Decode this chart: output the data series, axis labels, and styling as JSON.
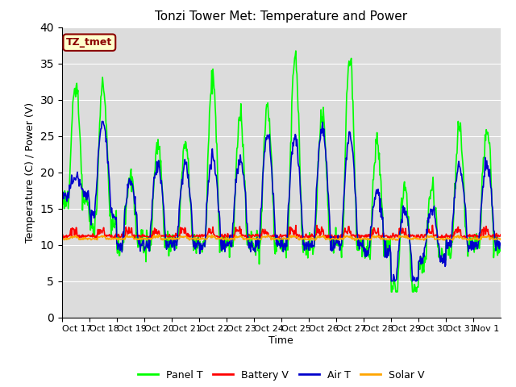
{
  "title": "Tonzi Tower Met: Temperature and Power",
  "xlabel": "Time",
  "ylabel": "Temperature (C) / Power (V)",
  "ylim": [
    0,
    40
  ],
  "yticks": [
    0,
    5,
    10,
    15,
    20,
    25,
    30,
    35,
    40
  ],
  "xtick_labels": [
    "Oct 17",
    "Oct 18",
    "Oct 19",
    "Oct 20",
    "Oct 21",
    "Oct 22",
    "Oct 23",
    "Oct 24",
    "Oct 25",
    "Oct 26",
    "Oct 27",
    "Oct 28",
    "Oct 29",
    "Oct 30",
    "Oct 31",
    "Nov 1"
  ],
  "annotation_text": "TZ_tmet",
  "annotation_bg": "#ffffcc",
  "annotation_fg": "#8b0000",
  "bg_color": "#dcdcdc",
  "fig_color": "#ffffff",
  "panel_t_color": "#00ff00",
  "battery_v_color": "#ff0000",
  "air_t_color": "#0000cc",
  "solar_v_color": "#ffa500",
  "legend_labels": [
    "Panel T",
    "Battery V",
    "Air T",
    "Solar V"
  ],
  "linewidth": 1.2,
  "n_days": 16,
  "pts_per_day": 48,
  "panel_day_peaks": [
    32,
    32,
    20,
    24,
    24,
    33,
    28,
    29,
    36,
    28,
    36,
    24,
    18,
    18,
    26,
    26
  ],
  "panel_night_base": [
    16,
    13,
    10,
    10,
    10,
    10,
    10,
    10,
    10,
    10,
    10,
    9,
    4,
    8,
    10,
    10
  ],
  "air_day_peaks": [
    19,
    27,
    19,
    21,
    21,
    22,
    22,
    25,
    25,
    26,
    25,
    17,
    15,
    15,
    21,
    21
  ],
  "air_night_base": [
    17,
    14,
    10,
    10,
    10,
    10,
    10,
    10,
    10,
    10,
    10,
    9,
    5,
    8,
    10,
    10
  ],
  "battery_base": 11.2,
  "solar_base": 10.8,
  "title_fontsize": 11,
  "label_fontsize": 9,
  "tick_fontsize": 8,
  "legend_fontsize": 9
}
